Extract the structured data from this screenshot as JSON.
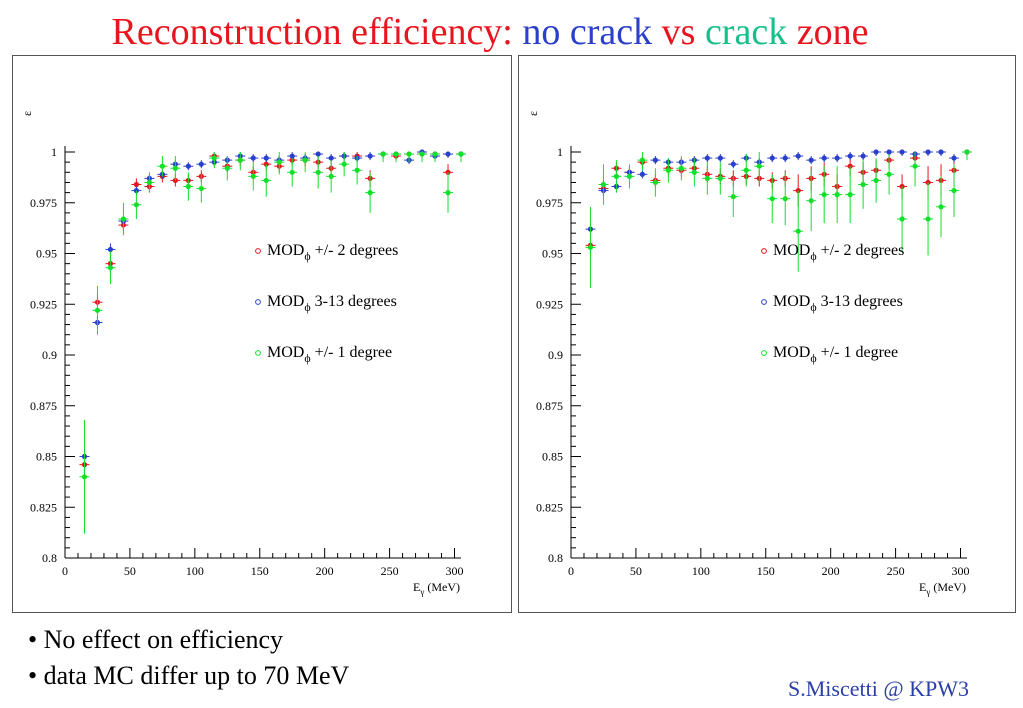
{
  "title": {
    "part1": "Reconstruction efficiency: ",
    "part2": "no crack",
    "part3": " vs ",
    "part4": "crack",
    "part5": " zone",
    "colors": {
      "red": "#e8141e",
      "blue": "#2a3fcc",
      "green": "#17c08a"
    }
  },
  "bullets": [
    "• No effect on efficiency",
    "• data MC differ up to 70 MeV"
  ],
  "footer": "S.Miscetti @ KPW3",
  "chart_data": [
    {
      "type": "scatter",
      "xlim": [
        0,
        305
      ],
      "ylim": [
        0.8,
        1.0
      ],
      "xticks": [
        0,
        50,
        100,
        150,
        200,
        250,
        300
      ],
      "yticks": [
        0.8,
        0.825,
        0.85,
        0.875,
        0.9,
        0.925,
        0.95,
        0.975,
        1
      ],
      "ytick_labels": [
        "0.8",
        "0.825",
        "0.85",
        "0.875",
        "0.9",
        "0.925",
        "0.95",
        "0.975",
        "1"
      ],
      "xlabel": {
        "main": "E",
        "sub": "γ",
        "unit": " (MeV)"
      },
      "ylabel": "ε",
      "grid": false,
      "legend_position": "right-middle",
      "series": [
        {
          "legend": {
            "main": "MOD",
            "sub": "ϕ",
            "rest": " +/- 2 degrees"
          },
          "color": "#e8141e",
          "x": [
            15,
            25,
            35,
            45,
            55,
            65,
            75,
            85,
            95,
            105,
            115,
            125,
            135,
            145,
            155,
            165,
            175,
            185,
            195,
            205,
            215,
            225,
            235,
            245,
            255,
            265,
            275,
            285,
            295,
            305
          ],
          "y": [
            0.846,
            0.926,
            0.945,
            0.964,
            0.984,
            0.983,
            0.988,
            0.986,
            0.986,
            0.988,
            0.998,
            0.993,
            0.996,
            0.99,
            0.994,
            0.993,
            0.996,
            0.996,
            0.995,
            0.992,
            0.998,
            0.998,
            0.987,
            0.999,
            0.998,
            0.999,
            0.999,
            0.999,
            0.99,
            0.999
          ],
          "err": [
            0.004,
            0.004,
            0.004,
            0.003,
            0.003,
            0.003,
            0.003,
            0.003,
            0.003,
            0.003,
            0.003,
            0.003,
            0.003,
            0.003,
            0.003,
            0.003,
            0.003,
            0.003,
            0.003,
            0.003,
            0.003,
            0.003,
            0.004,
            0.002,
            0.002,
            0.002,
            0.002,
            0.002,
            0.004,
            0.002
          ]
        },
        {
          "legend": {
            "main": "MOD",
            "sub": "ϕ",
            "rest": " 3-13 degrees"
          },
          "color": "#2a3fcc",
          "x": [
            15,
            25,
            35,
            45,
            55,
            65,
            75,
            85,
            95,
            105,
            115,
            125,
            135,
            145,
            155,
            165,
            175,
            185,
            195,
            205,
            215,
            225,
            235,
            245,
            255,
            265,
            275,
            285,
            295,
            305
          ],
          "y": [
            0.85,
            0.916,
            0.952,
            0.966,
            0.981,
            0.987,
            0.989,
            0.994,
            0.993,
            0.994,
            0.995,
            0.996,
            0.998,
            0.997,
            0.997,
            0.996,
            0.998,
            0.997,
            0.999,
            0.997,
            0.998,
            0.997,
            0.998,
            0.999,
            0.999,
            0.996,
            1.0,
            0.998,
            0.999,
            0.999
          ],
          "err": [
            0.003,
            0.003,
            0.003,
            0.002,
            0.002,
            0.002,
            0.002,
            0.002,
            0.002,
            0.002,
            0.002,
            0.002,
            0.002,
            0.002,
            0.002,
            0.002,
            0.002,
            0.002,
            0.002,
            0.002,
            0.002,
            0.002,
            0.002,
            0.002,
            0.002,
            0.002,
            0.002,
            0.002,
            0.002,
            0.002
          ]
        },
        {
          "legend": {
            "main": "MOD",
            "sub": "ϕ",
            "rest": " +/- 1 degree"
          },
          "color": "#11e02a",
          "x": [
            15,
            25,
            35,
            45,
            55,
            65,
            75,
            85,
            95,
            105,
            115,
            125,
            135,
            145,
            155,
            165,
            175,
            185,
            195,
            205,
            215,
            225,
            235,
            245,
            255,
            265,
            275,
            285,
            295,
            305
          ],
          "y": [
            0.84,
            0.922,
            0.943,
            0.967,
            0.974,
            0.985,
            0.993,
            0.992,
            0.983,
            0.982,
            0.997,
            0.992,
            0.996,
            0.988,
            0.986,
            0.995,
            0.99,
            0.996,
            0.99,
            0.988,
            0.994,
            0.991,
            0.98,
            0.999,
            0.999,
            0.999,
            0.999,
            0.999,
            0.98,
            0.999
          ],
          "err": [
            0.028,
            0.012,
            0.008,
            0.008,
            0.007,
            0.005,
            0.005,
            0.006,
            0.007,
            0.007,
            0.005,
            0.006,
            0.005,
            0.007,
            0.008,
            0.006,
            0.007,
            0.006,
            0.008,
            0.008,
            0.006,
            0.007,
            0.01,
            0.004,
            0.004,
            0.004,
            0.004,
            0.004,
            0.01,
            0.004
          ]
        }
      ]
    },
    {
      "type": "scatter",
      "xlim": [
        0,
        305
      ],
      "ylim": [
        0.8,
        1.0
      ],
      "xticks": [
        0,
        50,
        100,
        150,
        200,
        250,
        300
      ],
      "yticks": [
        0.8,
        0.825,
        0.85,
        0.875,
        0.9,
        0.925,
        0.95,
        0.975,
        1
      ],
      "ytick_labels": [
        "0.8",
        "0.825",
        "0.85",
        "0.875",
        "0.9",
        "0.925",
        "0.95",
        "0.975",
        "1"
      ],
      "xlabel": {
        "main": "E",
        "sub": "γ",
        "unit": " (MeV)"
      },
      "ylabel": "ε",
      "grid": false,
      "legend_position": "right-middle",
      "series": [
        {
          "legend": {
            "main": "MOD",
            "sub": "ϕ",
            "rest": " +/- 2 degrees"
          },
          "color": "#e8141e",
          "x": [
            15,
            25,
            35,
            45,
            55,
            65,
            75,
            85,
            95,
            105,
            115,
            125,
            135,
            145,
            155,
            165,
            175,
            185,
            195,
            205,
            215,
            225,
            235,
            245,
            255,
            265,
            275,
            285,
            295,
            305
          ],
          "y": [
            0.954,
            0.982,
            0.992,
            0.99,
            0.995,
            0.986,
            0.992,
            0.991,
            0.992,
            0.989,
            0.988,
            0.987,
            0.988,
            0.987,
            0.986,
            0.987,
            0.981,
            0.987,
            0.989,
            0.983,
            0.993,
            0.99,
            0.991,
            0.996,
            0.983,
            0.997,
            0.985,
            0.986,
            0.991,
            1.0
          ],
          "err": [
            0.004,
            0.004,
            0.003,
            0.003,
            0.003,
            0.003,
            0.003,
            0.003,
            0.003,
            0.004,
            0.004,
            0.004,
            0.004,
            0.004,
            0.004,
            0.004,
            0.008,
            0.006,
            0.006,
            0.006,
            0.005,
            0.005,
            0.005,
            0.004,
            0.006,
            0.004,
            0.008,
            0.008,
            0.005,
            0.002
          ]
        },
        {
          "legend": {
            "main": "MOD",
            "sub": "ϕ",
            "rest": " 3-13 degrees"
          },
          "color": "#2a3fcc",
          "x": [
            15,
            25,
            35,
            45,
            55,
            65,
            75,
            85,
            95,
            105,
            115,
            125,
            135,
            145,
            155,
            165,
            175,
            185,
            195,
            205,
            215,
            225,
            235,
            245,
            255,
            265,
            275,
            285,
            295,
            305
          ],
          "y": [
            0.962,
            0.981,
            0.983,
            0.99,
            0.989,
            0.996,
            0.995,
            0.995,
            0.996,
            0.997,
            0.997,
            0.994,
            0.997,
            0.995,
            0.997,
            0.997,
            0.998,
            0.996,
            0.997,
            0.997,
            0.998,
            0.998,
            1.0,
            1.0,
            1.0,
            0.999,
            1.0,
            1.0,
            0.997,
            1.0
          ],
          "err": [
            0.003,
            0.003,
            0.003,
            0.002,
            0.002,
            0.002,
            0.002,
            0.002,
            0.002,
            0.002,
            0.002,
            0.002,
            0.002,
            0.002,
            0.002,
            0.002,
            0.002,
            0.002,
            0.002,
            0.002,
            0.002,
            0.002,
            0.002,
            0.002,
            0.002,
            0.002,
            0.002,
            0.002,
            0.002,
            0.002
          ]
        },
        {
          "legend": {
            "main": "MOD",
            "sub": "ϕ",
            "rest": " +/- 1 degree"
          },
          "color": "#11e02a",
          "x": [
            15,
            25,
            35,
            45,
            55,
            65,
            75,
            85,
            95,
            105,
            115,
            125,
            135,
            145,
            155,
            165,
            175,
            185,
            195,
            205,
            215,
            225,
            235,
            245,
            255,
            265,
            275,
            285,
            295,
            305
          ],
          "y": [
            0.953,
            0.984,
            0.988,
            0.988,
            0.996,
            0.985,
            0.991,
            0.992,
            0.99,
            0.987,
            0.987,
            0.978,
            0.991,
            0.993,
            0.977,
            0.977,
            0.961,
            0.976,
            0.979,
            0.979,
            0.979,
            0.984,
            0.986,
            0.989,
            0.967,
            0.993,
            0.967,
            0.973,
            0.981,
            1.0
          ],
          "err": [
            0.02,
            0.01,
            0.008,
            0.006,
            0.005,
            0.007,
            0.006,
            0.006,
            0.007,
            0.008,
            0.008,
            0.01,
            0.008,
            0.008,
            0.012,
            0.013,
            0.02,
            0.015,
            0.014,
            0.014,
            0.014,
            0.012,
            0.011,
            0.01,
            0.016,
            0.01,
            0.018,
            0.015,
            0.013,
            0.004
          ]
        }
      ]
    }
  ]
}
